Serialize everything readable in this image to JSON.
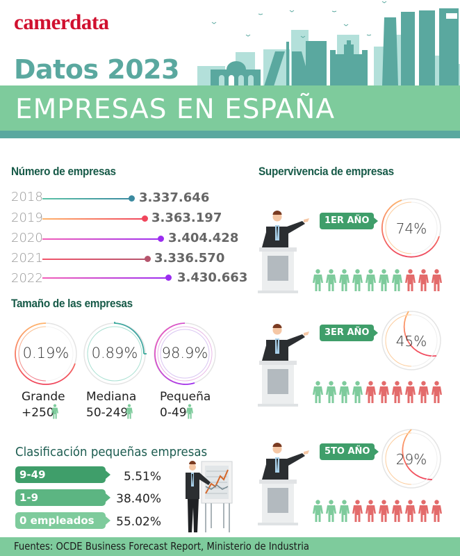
{
  "header": {
    "logo": "camerdata",
    "subtitle": "Datos 2023",
    "title": "EMPRESAS EN ESPAÑA"
  },
  "numero": {
    "heading": "Número de empresas",
    "rows": [
      {
        "year": "2018",
        "value": "3.337.646",
        "color_start": "#5cc2a6",
        "color_end": "#3b8aa0",
        "dot": "#3b8aa0"
      },
      {
        "year": "2019",
        "value": "3.363.197",
        "color_start": "#ffb36b",
        "color_end": "#f0455c",
        "dot": "#f0455c"
      },
      {
        "year": "2020",
        "value": "3.404.428",
        "color_start": "#f25fb8",
        "color_end": "#9b2cf0",
        "dot": "#9b2cf0"
      },
      {
        "year": "2021",
        "value": "3.336.570",
        "color_start": "#f2556a",
        "color_end": "#b5546c",
        "dot": "#b5546c"
      },
      {
        "year": "2022",
        "value": "3.430.663",
        "color_start": "#f25fb8",
        "color_end": "#9b2cf0",
        "dot": "#9b2cf0"
      }
    ]
  },
  "tamano": {
    "heading": "Tamaño de las empresas",
    "items": [
      {
        "pct": "0.19%",
        "label": "Grande",
        "range": "+250",
        "c1": "#ffb36b",
        "c2": "#f0455c"
      },
      {
        "pct": "0.89%",
        "label": "Mediana",
        "range": "50-249",
        "c1": "#3bbf96",
        "c2": "#3a6fb0"
      },
      {
        "pct": "98.9%",
        "label": "Pequeña",
        "range": "0-49",
        "c1": "#f25fb8",
        "c2": "#9b2cf0"
      }
    ]
  },
  "clasificacion": {
    "heading": "Clasificación pequeñas empresas",
    "items": [
      {
        "label": "9-49 empleados",
        "pct": "5.51%",
        "color": "#3f9e6a"
      },
      {
        "label": "1-9 empleados",
        "pct": "38.40%",
        "color": "#5cb582"
      },
      {
        "label": "0 empleados",
        "pct": "55.02%",
        "color": "#7ecb9c"
      }
    ]
  },
  "supervivencia": {
    "heading": "Supervivencia de empresas",
    "items": [
      {
        "label": "1ER AÑO",
        "pct": "74%",
        "green": 7,
        "red": 3
      },
      {
        "label": "3ER AÑO",
        "pct": "45%",
        "green": 4,
        "red": 6
      },
      {
        "label": "5TO AÑO",
        "pct": "29%",
        "green": 3,
        "red": 7
      }
    ]
  },
  "colors": {
    "green_person": "#7ecb9c",
    "red_person": "#e36b6b",
    "band": "#7ecb9c",
    "teal": "#5aa89f",
    "heading": "#175a48"
  },
  "footer": {
    "sources": "Fuentes: OCDE Business Forecast Report, Ministerio de Industria"
  },
  "chart_data": [
    {
      "type": "bar",
      "title": "Número de empresas",
      "categories": [
        "2018",
        "2019",
        "2020",
        "2021",
        "2022"
      ],
      "values": [
        3337646,
        3363197,
        3404428,
        3336570,
        3430663
      ],
      "orientation": "horizontal"
    },
    {
      "type": "pie",
      "title": "Tamaño de las empresas",
      "categories": [
        "Grande +250",
        "Mediana 50-249",
        "Pequeña 0-49"
      ],
      "values": [
        0.19,
        0.89,
        98.9
      ],
      "unit": "%"
    },
    {
      "type": "bar",
      "title": "Clasificación pequeñas empresas",
      "categories": [
        "9-49 empleados",
        "1-9 empleados",
        "0 empleados"
      ],
      "values": [
        5.51,
        38.4,
        55.02
      ],
      "unit": "%"
    },
    {
      "type": "bar",
      "title": "Supervivencia de empresas",
      "categories": [
        "1er año",
        "3er año",
        "5to año"
      ],
      "values": [
        74,
        45,
        29
      ],
      "unit": "%"
    }
  ]
}
